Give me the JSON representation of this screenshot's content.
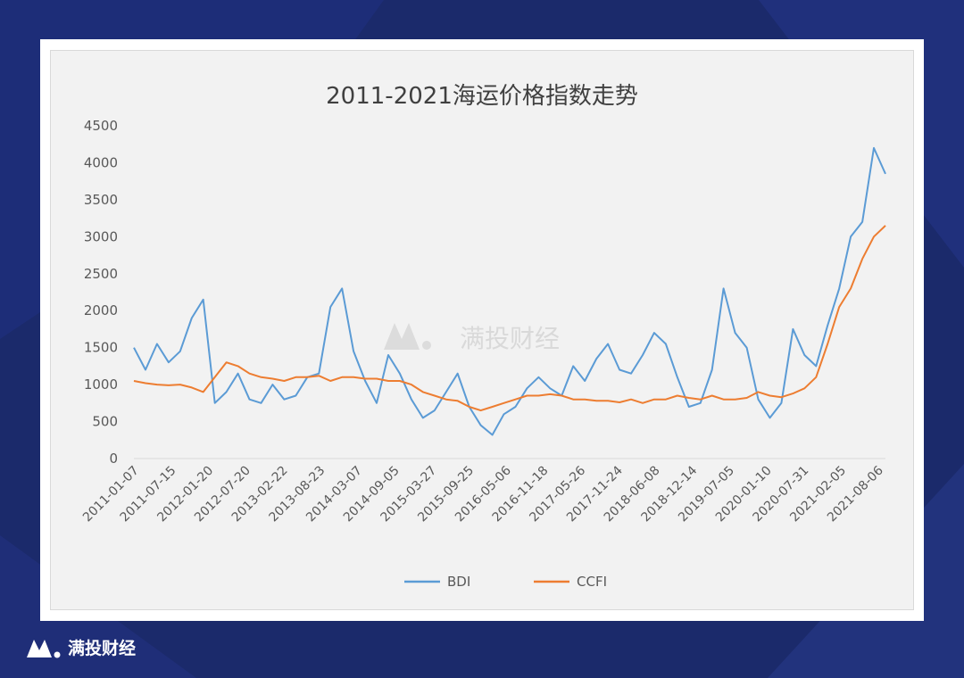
{
  "brand": {
    "name": "满投财经",
    "watermark": "满投财经"
  },
  "colors": {
    "bdi": "#5b9bd5",
    "ccfi": "#ed7d31",
    "background": "#1b2a6b",
    "grid": "#d9d9d9",
    "text": "#595959"
  },
  "chart_data": {
    "type": "line",
    "title": "2011-2021海运价格指数走势",
    "xlabel": "",
    "ylabel": "",
    "ylim": [
      0,
      4500
    ],
    "yticks": [
      0,
      500,
      1000,
      1500,
      2000,
      2500,
      3000,
      3500,
      4000,
      4500
    ],
    "grid": false,
    "legend": "bottom",
    "x_tick_labels": [
      "2011-01-07",
      "2011-07-15",
      "2012-01-20",
      "2012-07-20",
      "2013-02-22",
      "2013-08-23",
      "2014-03-07",
      "2014-09-05",
      "2015-03-27",
      "2015-09-25",
      "2016-05-06",
      "2016-11-18",
      "2017-05-26",
      "2017-11-24",
      "2018-06-08",
      "2018-12-14",
      "2019-07-05",
      "2020-01-10",
      "2020-07-31",
      "2021-02-05",
      "2021-08-06"
    ],
    "x": [
      "2011-01",
      "2011-03",
      "2011-05",
      "2011-07",
      "2011-09",
      "2011-11",
      "2012-01",
      "2012-03",
      "2012-05",
      "2012-07",
      "2012-09",
      "2012-11",
      "2013-01",
      "2013-03",
      "2013-05",
      "2013-07",
      "2013-09",
      "2013-11",
      "2014-01",
      "2014-03",
      "2014-05",
      "2014-07",
      "2014-09",
      "2014-11",
      "2015-01",
      "2015-03",
      "2015-05",
      "2015-07",
      "2015-09",
      "2015-11",
      "2016-01",
      "2016-03",
      "2016-05",
      "2016-07",
      "2016-09",
      "2016-11",
      "2017-01",
      "2017-03",
      "2017-05",
      "2017-07",
      "2017-09",
      "2017-11",
      "2018-01",
      "2018-03",
      "2018-05",
      "2018-07",
      "2018-09",
      "2018-11",
      "2019-01",
      "2019-03",
      "2019-05",
      "2019-07",
      "2019-09",
      "2019-11",
      "2020-01",
      "2020-03",
      "2020-05",
      "2020-07",
      "2020-09",
      "2020-11",
      "2021-01",
      "2021-03",
      "2021-05",
      "2021-07",
      "2021-09",
      "2021-10"
    ],
    "series": [
      {
        "name": "BDI",
        "values": [
          1500,
          1200,
          1550,
          1300,
          1450,
          1900,
          2150,
          750,
          900,
          1150,
          800,
          750,
          1000,
          800,
          850,
          1100,
          1150,
          2050,
          2300,
          1450,
          1050,
          750,
          1400,
          1150,
          800,
          550,
          650,
          900,
          1150,
          700,
          450,
          320,
          600,
          700,
          950,
          1100,
          950,
          850,
          1250,
          1050,
          1350,
          1550,
          1200,
          1150,
          1400,
          1700,
          1550,
          1100,
          700,
          750,
          1200,
          2300,
          1700,
          1500,
          800,
          550,
          750,
          1750,
          1400,
          1250,
          1800,
          2300,
          3000,
          3200,
          4200,
          3850
        ]
      },
      {
        "name": "CCFI",
        "values": [
          1050,
          1020,
          1000,
          990,
          1000,
          960,
          900,
          1100,
          1300,
          1250,
          1150,
          1100,
          1080,
          1050,
          1100,
          1100,
          1120,
          1050,
          1100,
          1100,
          1080,
          1080,
          1050,
          1050,
          1000,
          900,
          850,
          800,
          780,
          700,
          650,
          700,
          750,
          800,
          850,
          850,
          870,
          850,
          800,
          800,
          780,
          780,
          760,
          800,
          750,
          800,
          800,
          850,
          820,
          800,
          850,
          800,
          800,
          820,
          900,
          850,
          830,
          880,
          950,
          1100,
          1550,
          2050,
          2300,
          2700,
          3000,
          3150
        ]
      }
    ]
  }
}
